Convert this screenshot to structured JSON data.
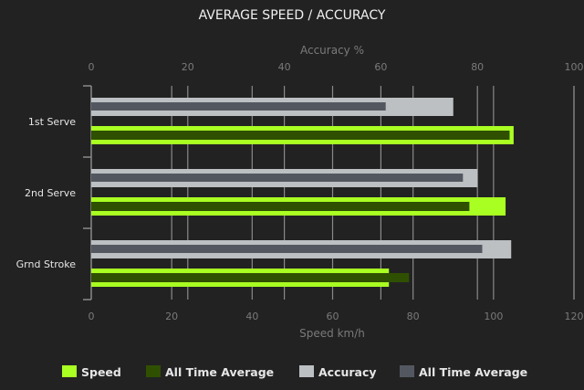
{
  "chart_data": {
    "type": "bar",
    "orientation": "horizontal",
    "title": "AVERAGE SPEED / ACCURACY",
    "categories": [
      "1st Serve",
      "2nd Serve",
      "Grnd Stroke"
    ],
    "top_axis": {
      "label": "Accuracy %",
      "range": [
        0,
        100
      ],
      "ticks": [
        "0",
        "20",
        "40",
        "60",
        "80",
        "100"
      ]
    },
    "bottom_axis": {
      "label": "Speed km/h",
      "range": [
        0,
        120
      ],
      "ticks": [
        "0",
        "20",
        "40",
        "60",
        "80",
        "100",
        "120"
      ]
    },
    "grid": true,
    "legend_position": "bottom",
    "series": [
      {
        "name": "Speed",
        "axis": "bottom",
        "color": "#aaff22",
        "values": [
          105,
          103,
          74
        ]
      },
      {
        "name": "All Time Average",
        "axis": "bottom",
        "color": "#2f5000",
        "values": [
          104,
          94,
          79
        ]
      },
      {
        "name": "Accuracy",
        "axis": "top",
        "color": "#bcc0c3",
        "values": [
          75,
          80,
          87
        ]
      },
      {
        "name": "All Time Average",
        "axis": "top",
        "color": "#535860",
        "values": [
          61,
          77,
          81
        ]
      }
    ]
  }
}
